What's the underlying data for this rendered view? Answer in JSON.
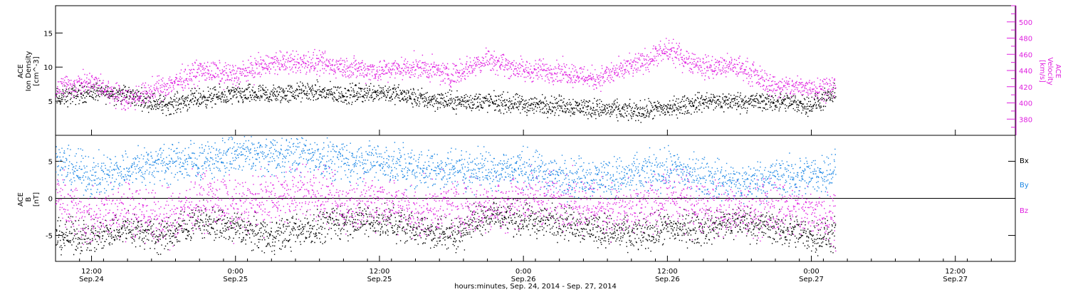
{
  "colors": {
    "black": "#000000",
    "magenta": "#e020e0",
    "blue": "#1e88e5",
    "axis": "#000000"
  },
  "x_axis": {
    "title": "hours:minutes, Sep. 24, 2014 - Sep. 27, 2014",
    "range_hours": [
      9,
      89
    ],
    "ticks": [
      {
        "h": 12,
        "time": "12:00",
        "date": "Sep.24"
      },
      {
        "h": 24,
        "time": "0:00",
        "date": "Sep.25"
      },
      {
        "h": 36,
        "time": "12:00",
        "date": "Sep.25"
      },
      {
        "h": 48,
        "time": "0:00",
        "date": "Sep.26"
      },
      {
        "h": 60,
        "time": "12:00",
        "date": "Sep.26"
      },
      {
        "h": 72,
        "time": "0:00",
        "date": "Sep.27"
      },
      {
        "h": 84,
        "time": "12:00",
        "date": "Sep.27"
      }
    ]
  },
  "chart_data": [
    {
      "type": "scatter",
      "title": "",
      "ylabel_left": [
        "ACE",
        "Ion Density",
        "[cm^-3]"
      ],
      "ylabel_right": [
        "ACE",
        "Velocity",
        "[km/s]"
      ],
      "ylim_left": [
        0,
        19
      ],
      "yticks_left": [
        5,
        10,
        15
      ],
      "ylim_right": [
        360,
        520
      ],
      "yticks_right": [
        380,
        400,
        420,
        440,
        460,
        480,
        500
      ],
      "x_range_hours": [
        9,
        74.2
      ],
      "series": [
        {
          "key": "density",
          "axis": "left",
          "color": "#000000",
          "x": [
            9,
            12,
            15,
            18,
            21,
            24,
            27,
            30,
            33,
            36,
            39,
            42,
            45,
            48,
            51,
            54,
            57,
            60,
            63,
            66,
            69,
            72,
            74
          ],
          "values": [
            5.5,
            6.5,
            6,
            4.5,
            5.5,
            6,
            6,
            6.5,
            6,
            6.5,
            5.5,
            5,
            5,
            4.5,
            4.5,
            4,
            3.5,
            4,
            5,
            5,
            5,
            4.5,
            6
          ]
        },
        {
          "key": "velocity",
          "axis": "right",
          "color": "#e020e0",
          "x": [
            9,
            12,
            15,
            18,
            21,
            24,
            27,
            30,
            33,
            36,
            39,
            42,
            45,
            48,
            51,
            54,
            57,
            60,
            63,
            66,
            69,
            72,
            74
          ],
          "values": [
            420,
            425,
            405,
            420,
            440,
            435,
            450,
            450,
            445,
            440,
            445,
            435,
            455,
            440,
            440,
            430,
            445,
            465,
            445,
            445,
            420,
            420,
            420
          ]
        }
      ]
    },
    {
      "type": "scatter",
      "title": "",
      "ylabel_left": [
        "ACE",
        "B",
        "[nT]"
      ],
      "ylim": [
        -8.5,
        8.5
      ],
      "yticks": [
        -5,
        0,
        5
      ],
      "x_range_hours": [
        9,
        74.2
      ],
      "legend": [
        "Bx",
        "By",
        "Bz"
      ],
      "series": [
        {
          "key": "Bx",
          "name": "Bx",
          "color": "#000000",
          "x": [
            9,
            12,
            15,
            18,
            21,
            24,
            27,
            30,
            33,
            36,
            39,
            42,
            45,
            48,
            51,
            54,
            57,
            60,
            63,
            66,
            69,
            72,
            74
          ],
          "values": [
            -5,
            -5,
            -4,
            -5,
            -3,
            -4,
            -5,
            -4,
            -3,
            -3,
            -4,
            -5,
            -2,
            -3,
            -3,
            -4,
            -5,
            -4,
            -4,
            -3,
            -4,
            -5,
            -5
          ]
        },
        {
          "key": "By",
          "name": "By",
          "color": "#1e88e5",
          "x": [
            9,
            12,
            15,
            18,
            21,
            24,
            27,
            30,
            33,
            36,
            39,
            42,
            45,
            48,
            51,
            54,
            57,
            60,
            63,
            66,
            69,
            72,
            74
          ],
          "values": [
            5,
            3,
            4,
            5,
            5,
            6,
            6,
            6,
            5,
            5,
            4,
            4,
            4,
            4,
            3,
            3,
            3,
            4,
            3,
            2,
            3,
            3,
            4
          ]
        },
        {
          "key": "Bz",
          "name": "Bz",
          "color": "#e020e0",
          "x": [
            9,
            12,
            15,
            18,
            21,
            24,
            27,
            30,
            33,
            36,
            39,
            42,
            45,
            48,
            51,
            54,
            57,
            60,
            63,
            66,
            69,
            72,
            74
          ],
          "values": [
            0,
            -3,
            -1,
            -3,
            0,
            -1,
            0,
            1,
            -1,
            0,
            -2,
            -1,
            -1,
            0,
            0,
            -1,
            -2,
            0,
            -1,
            -2,
            -1,
            -2,
            -2
          ]
        }
      ]
    }
  ]
}
